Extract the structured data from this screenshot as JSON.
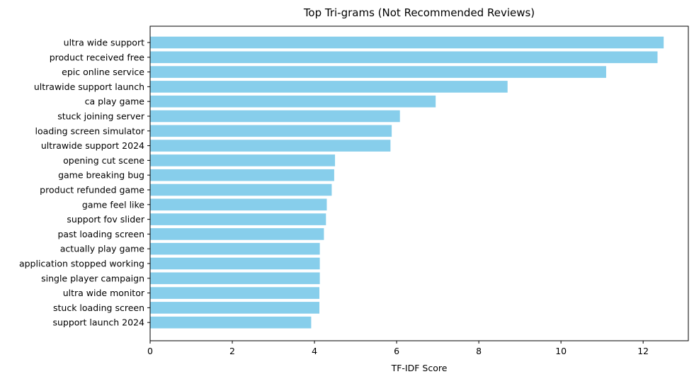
{
  "chart_data": {
    "type": "bar",
    "orientation": "horizontal",
    "title": "Top Tri-grams (Not Recommended Reviews)",
    "xlabel": "TF-IDF Score",
    "ylabel": "",
    "xlim": [
      0,
      13.1
    ],
    "xticks": [
      0,
      2,
      4,
      6,
      8,
      10,
      12
    ],
    "bar_color": "#87CEEB",
    "grid": false,
    "categories": [
      "ultra wide support",
      "product received free",
      "epic online service",
      "ultrawide support launch",
      "ca play game",
      "stuck joining server",
      "loading screen simulator",
      "ultrawide support 2024",
      "opening cut scene",
      "game breaking bug",
      "product refunded game",
      "game feel like",
      "support fov slider",
      "past loading screen",
      "actually play game",
      "application stopped working",
      "single player campaign",
      "ultra wide monitor",
      "stuck loading screen",
      "support launch 2024"
    ],
    "values": [
      12.5,
      12.35,
      11.1,
      8.7,
      6.95,
      6.08,
      5.88,
      5.85,
      4.5,
      4.48,
      4.42,
      4.3,
      4.28,
      4.23,
      4.13,
      4.13,
      4.13,
      4.12,
      4.12,
      3.92
    ]
  }
}
